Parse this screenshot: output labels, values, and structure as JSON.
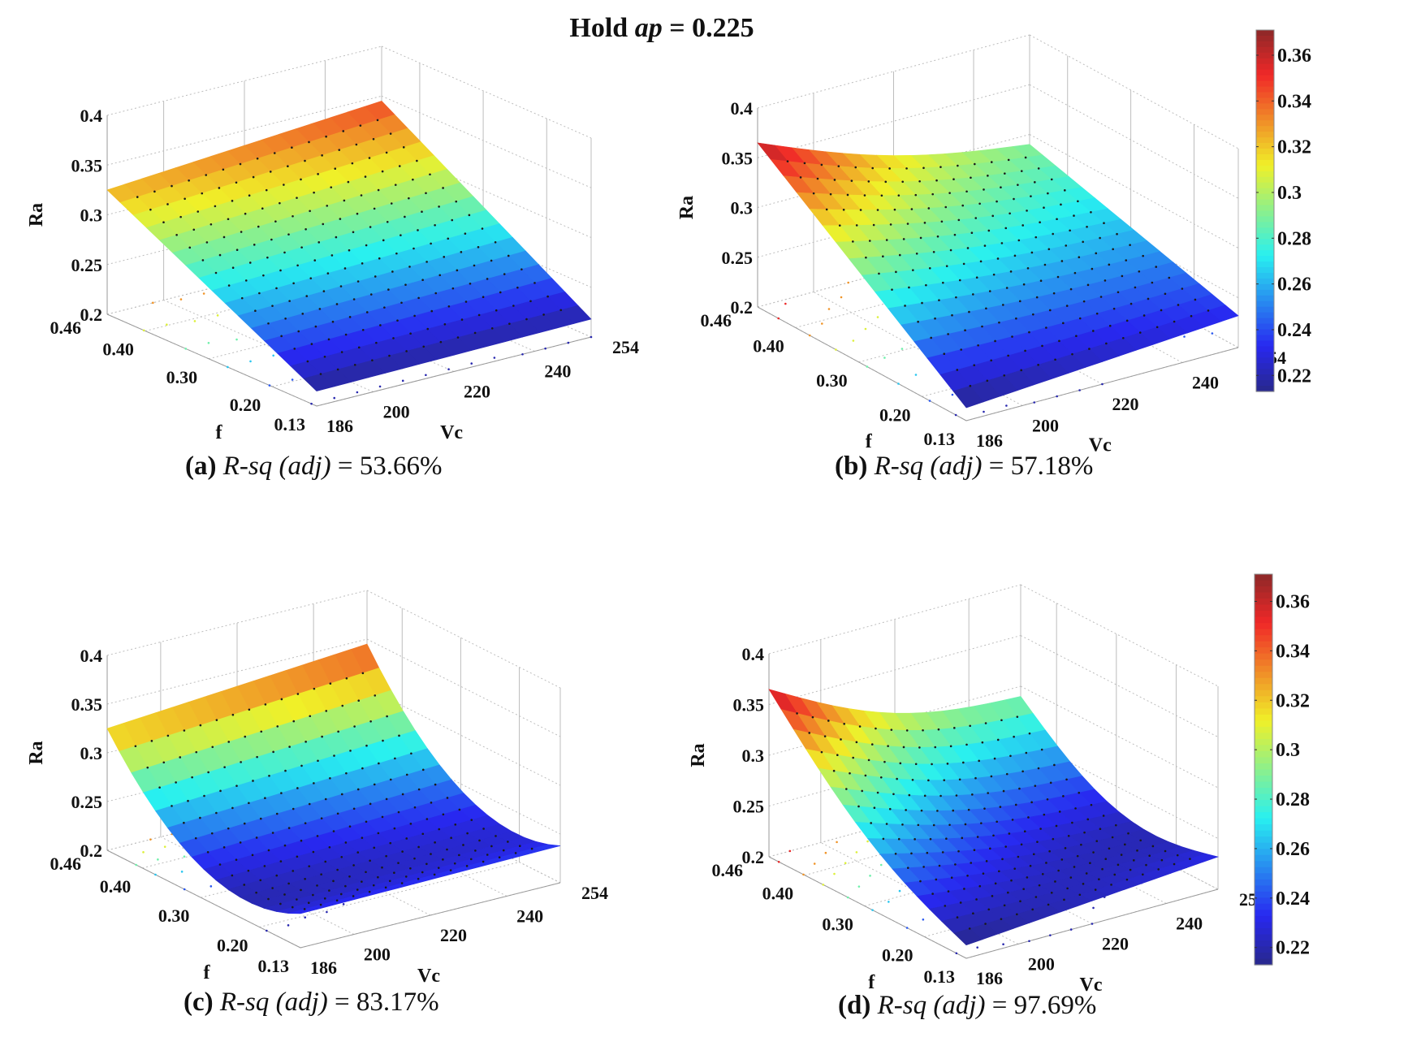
{
  "figure": {
    "title_prefix": "Hold ",
    "title_var": "ap",
    "title_suffix": " = 0.225"
  },
  "colorbars": [
    {
      "ticks": [
        "0.36",
        "0.34",
        "0.32",
        "0.3",
        "0.28",
        "0.26",
        "0.24",
        "0.22"
      ],
      "range": [
        0.213,
        0.371
      ]
    },
    {
      "ticks": [
        "0.36",
        "0.34",
        "0.32",
        "0.3",
        "0.28",
        "0.26",
        "0.24",
        "0.22"
      ],
      "range": [
        0.213,
        0.371
      ]
    }
  ],
  "panels": [
    {
      "id": "a",
      "label": "(a)",
      "metric": "R-sq (adj)",
      "value": " = 53.66%"
    },
    {
      "id": "b",
      "label": "(b)",
      "metric": "R-sq (adj)",
      "value": " = 57.18%"
    },
    {
      "id": "c",
      "label": "(c)",
      "metric": "R-sq (adj)",
      "value": " = 83.17%"
    },
    {
      "id": "d",
      "label": "(d)",
      "metric": "R-sq (adj)",
      "value": " = 97.69%"
    }
  ],
  "chart_data": [
    {
      "type": "surface3d",
      "title": "(a) R-sq (adj) = 53.66%",
      "suptitle": "Hold ap = 0.225",
      "xlabel": "Vc",
      "ylabel": "f",
      "zlabel": "Ra",
      "x_ticks": [
        186,
        200,
        220,
        240,
        254
      ],
      "y_ticks": [
        0.46,
        0.4,
        0.3,
        0.2,
        0.13
      ],
      "z_ticks": [
        0.2,
        0.25,
        0.3,
        0.35,
        0.4
      ],
      "zlim": [
        0.2,
        0.4
      ],
      "model": "linear",
      "corners": {
        "Vc186_f0.46": 0.325,
        "Vc254_f0.46": 0.345,
        "Vc186_f0.13": 0.215,
        "Vc254_f0.13": 0.218
      },
      "colormap": "jet"
    },
    {
      "type": "surface3d",
      "title": "(b) R-sq (adj) = 57.18%",
      "xlabel": "Vc",
      "ylabel": "f",
      "zlabel": "Ra",
      "x_ticks": [
        186,
        200,
        220,
        240,
        254
      ],
      "y_ticks": [
        0.46,
        0.4,
        0.3,
        0.2,
        0.13
      ],
      "z_ticks": [
        0.2,
        0.25,
        0.3,
        0.35,
        0.4
      ],
      "zlim": [
        0.2,
        0.4
      ],
      "model": "linear with interaction",
      "corners": {
        "Vc186_f0.46": 0.365,
        "Vc254_f0.46": 0.29,
        "Vc186_f0.13": 0.213,
        "Vc254_f0.13": 0.232
      },
      "colormap": "jet",
      "colorbar": {
        "ticks": [
          0.22,
          0.24,
          0.26,
          0.28,
          0.3,
          0.32,
          0.34,
          0.36
        ],
        "range": [
          0.213,
          0.371
        ]
      }
    },
    {
      "type": "surface3d",
      "title": "(c) R-sq (adj) = 83.17%",
      "xlabel": "Vc",
      "ylabel": "f",
      "zlabel": "Ra",
      "x_ticks": [
        186,
        200,
        220,
        240,
        254
      ],
      "y_ticks": [
        0.46,
        0.4,
        0.3,
        0.2,
        0.13
      ],
      "z_ticks": [
        0.2,
        0.25,
        0.3,
        0.35,
        0.4
      ],
      "zlim": [
        0.2,
        0.4
      ],
      "model": "quadratic",
      "corners": {
        "Vc186_f0.46": 0.325,
        "Vc254_f0.46": 0.345,
        "Vc186_f0.13": 0.215,
        "Vc254_f0.13": 0.218
      },
      "colormap": "jet"
    },
    {
      "type": "surface3d",
      "title": "(d) R-sq (adj) = 97.69%",
      "xlabel": "Vc",
      "ylabel": "f",
      "zlabel": "Ra",
      "x_ticks": [
        186,
        200,
        220,
        240,
        254
      ],
      "y_ticks": [
        0.46,
        0.4,
        0.3,
        0.2,
        0.13
      ],
      "z_ticks": [
        0.2,
        0.25,
        0.3,
        0.35,
        0.4
      ],
      "zlim": [
        0.2,
        0.4
      ],
      "model": "full quadratic",
      "corners": {
        "Vc186_f0.46": 0.365,
        "Vc254_f0.46": 0.29,
        "Vc186_f0.13": 0.213,
        "Vc254_f0.13": 0.232
      },
      "colormap": "jet",
      "colorbar": {
        "ticks": [
          0.22,
          0.24,
          0.26,
          0.28,
          0.3,
          0.32,
          0.34,
          0.36
        ],
        "range": [
          0.213,
          0.371
        ]
      }
    }
  ]
}
